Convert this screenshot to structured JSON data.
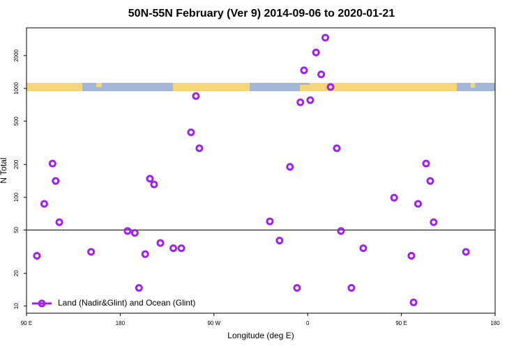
{
  "chart_data": {
    "type": "scatter",
    "title": "50N-55N February (Ver 9)   2014-09-06 to 2020-01-21",
    "x_label": "Longitude (deg E)",
    "y_label": "N Total",
    "x": [
      100,
      107,
      115,
      118,
      121.5,
      152,
      187,
      194,
      198,
      204,
      208.5,
      212.5,
      218.6,
      231,
      238.7,
      248,
      252.7,
      256,
      323.7,
      333,
      343,
      349.8,
      353,
      356.5,
      362.5,
      368,
      373,
      377,
      382,
      388,
      392,
      402,
      413.4,
      443,
      459.6,
      461.7,
      466,
      473.7,
      477.7,
      481,
      512
    ],
    "series": [
      {
        "name": "Land (Nadir&Glint) and Ocean (Glint)",
        "color": "#a020f0",
        "values": [
          29,
          87,
          204,
          141,
          59,
          31.5,
          49,
          47,
          14.7,
          30,
          148,
          131,
          38,
          34,
          34,
          395,
          850,
          282,
          60,
          40,
          190,
          14.7,
          745,
          1465,
          780,
          2140,
          1345,
          2925,
          1030,
          282,
          49,
          14.7,
          34,
          99,
          29,
          10.8,
          87,
          204,
          141,
          59,
          31.5
        ]
      }
    ],
    "xlim": [
      90,
      540
    ],
    "xticks": [
      {
        "value": 90,
        "label": "90 E"
      },
      180,
      {
        "value": 270,
        "label": "90 W"
      },
      {
        "value": 360,
        "label": "0"
      },
      {
        "value": 450,
        "label": "90 E"
      },
      {
        "value": 540,
        "label": "180"
      }
    ],
    "ylim": [
      8.6,
      3600
    ],
    "log_y": true,
    "yticks": [
      10,
      20,
      50,
      100,
      200,
      500,
      1000,
      2000
    ],
    "hline": 50,
    "legend": "bottom left"
  }
}
